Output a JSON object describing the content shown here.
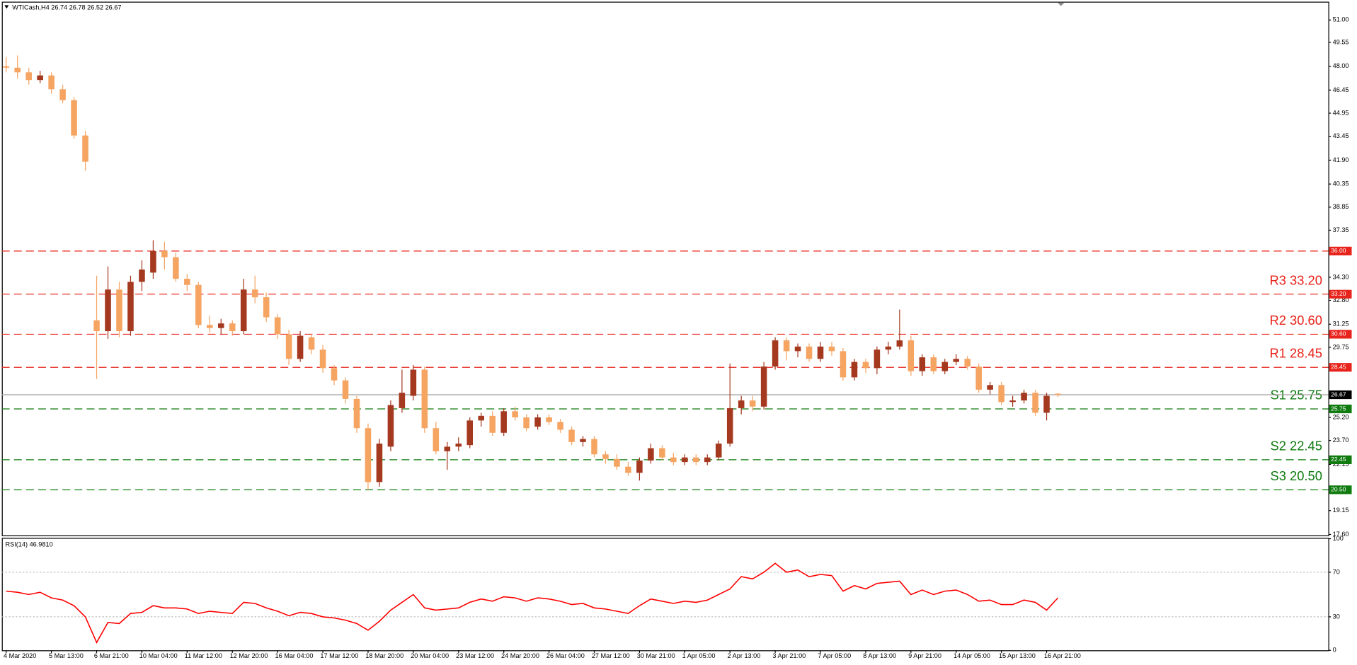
{
  "chart_data": [
    {
      "type": "candlestick",
      "title": "WTICash,H4  26.74 26.78 26.52 26.67",
      "up_color": "#a5391f",
      "down_color": "#f5a462",
      "categories": [
        "4 Mar 2020",
        null,
        null,
        null,
        "5 Mar 13:00",
        null,
        null,
        null,
        "6 Mar 21:00",
        null,
        null,
        null,
        "10 Mar 04:00",
        null,
        null,
        null,
        "11 Mar 12:00",
        null,
        null,
        null,
        "12 Mar 20:00",
        null,
        null,
        null,
        "16 Mar 04:00",
        null,
        null,
        null,
        "17 Mar 12:00",
        null,
        null,
        null,
        "18 Mar 20:00",
        null,
        null,
        null,
        "20 Mar 04:00",
        null,
        null,
        null,
        "23 Mar 12:00",
        null,
        null,
        null,
        "24 Mar 20:00",
        null,
        null,
        null,
        "26 Mar 04:00",
        null,
        null,
        null,
        "27 Mar 12:00",
        null,
        null,
        null,
        "30 Mar 21:00",
        null,
        null,
        null,
        "1 Apr 05:00",
        null,
        null,
        null,
        "2 Apr 13:00",
        null,
        null,
        null,
        "3 Apr 21:00",
        null,
        null,
        null,
        "7 Apr 05:00",
        null,
        null,
        null,
        "8 Apr 13:00",
        null,
        null,
        null,
        "9 Apr 21:00",
        null,
        null,
        null,
        "14 Apr 05:00",
        null,
        null,
        null,
        "15 Apr 13:00",
        null,
        null,
        null,
        "16 Apr 21:00",
        null
      ],
      "open": [
        48.0,
        47.9,
        47.6,
        47.1,
        47.4,
        46.5,
        45.8,
        43.5,
        31.5,
        30.8,
        33.5,
        30.8,
        34.0,
        34.6,
        36.0,
        35.6,
        34.2,
        33.8,
        31.2,
        31.0,
        31.3,
        30.8,
        33.5,
        33.0,
        31.7,
        30.6,
        29.0,
        30.4,
        29.6,
        28.4,
        27.6,
        26.4,
        24.5,
        21.0,
        23.3,
        25.8,
        26.6,
        28.3,
        24.5,
        23.0,
        23.3,
        23.4,
        25.0,
        25.3,
        24.2,
        25.6,
        25.2,
        24.6,
        25.2,
        24.9,
        24.4,
        23.6,
        23.8,
        22.8,
        22.5,
        22.0,
        21.6,
        22.4,
        23.2,
        22.6,
        22.3,
        22.6,
        22.3,
        22.6,
        23.5,
        25.8,
        26.3,
        25.9,
        28.5,
        30.2,
        29.5,
        29.8,
        29.0,
        29.8,
        29.5,
        27.8,
        28.8,
        28.4,
        29.6,
        29.8,
        30.2,
        28.2,
        29.1,
        28.2,
        28.8,
        29.0,
        28.5,
        27.0,
        27.3,
        26.2,
        26.3,
        26.8,
        25.5,
        26.74
      ],
      "high": [
        48.6,
        48.7,
        47.9,
        47.7,
        47.6,
        46.8,
        46.0,
        43.8,
        34.4,
        35.0,
        34.0,
        34.4,
        35.4,
        36.7,
        36.6,
        35.9,
        34.5,
        34.0,
        31.8,
        31.6,
        31.5,
        34.2,
        34.4,
        33.3,
        31.9,
        30.9,
        30.8,
        30.6,
        29.9,
        28.6,
        27.8,
        26.6,
        24.8,
        23.8,
        26.3,
        28.3,
        28.6,
        28.5,
        24.9,
        23.6,
        23.9,
        25.2,
        25.5,
        25.6,
        25.8,
        25.9,
        25.4,
        25.4,
        25.4,
        25.1,
        24.6,
        24.0,
        24.0,
        23.0,
        22.8,
        22.3,
        22.6,
        23.5,
        23.4,
        22.9,
        22.8,
        22.8,
        22.8,
        23.7,
        28.7,
        26.6,
        26.6,
        28.8,
        30.4,
        30.4,
        30.0,
        30.0,
        30.1,
        30.1,
        29.7,
        29.0,
        29.0,
        29.8,
        30.1,
        32.2,
        30.5,
        29.3,
        29.3,
        29.0,
        29.3,
        29.2,
        28.7,
        27.5,
        27.5,
        26.6,
        27.0,
        27.0,
        26.8,
        26.78
      ],
      "low": [
        47.6,
        47.2,
        46.8,
        46.9,
        46.2,
        45.6,
        43.3,
        41.2,
        27.7,
        30.3,
        30.4,
        30.5,
        33.4,
        34.2,
        34.8,
        34.0,
        33.4,
        31.0,
        30.7,
        30.6,
        30.5,
        30.6,
        32.6,
        31.4,
        30.3,
        28.6,
        28.8,
        29.3,
        28.1,
        27.3,
        26.1,
        24.2,
        20.5,
        20.7,
        23.0,
        25.5,
        26.3,
        24.2,
        22.8,
        21.8,
        23.0,
        23.2,
        24.6,
        24.0,
        24.0,
        25.0,
        24.3,
        24.4,
        24.7,
        24.2,
        23.4,
        23.3,
        22.6,
        22.2,
        21.8,
        21.4,
        21.1,
        22.2,
        22.4,
        22.1,
        22.1,
        22.1,
        22.1,
        22.4,
        23.3,
        25.4,
        25.6,
        25.7,
        28.3,
        28.9,
        29.1,
        28.8,
        28.8,
        29.2,
        27.6,
        27.6,
        28.1,
        28.0,
        29.3,
        29.6,
        27.9,
        27.9,
        28.0,
        28.0,
        28.6,
        28.3,
        26.8,
        26.7,
        26.0,
        25.9,
        26.1,
        25.3,
        25.0,
        26.52
      ],
      "close": [
        47.9,
        47.6,
        47.1,
        47.4,
        46.5,
        45.8,
        43.5,
        41.8,
        30.8,
        33.5,
        30.8,
        34.0,
        34.8,
        36.0,
        35.6,
        34.2,
        33.8,
        31.2,
        31.0,
        31.3,
        30.8,
        33.5,
        33.0,
        31.7,
        30.6,
        29.0,
        30.5,
        29.6,
        28.4,
        27.6,
        26.4,
        24.5,
        21.0,
        23.5,
        26.0,
        26.8,
        28.3,
        24.5,
        23.0,
        23.3,
        23.5,
        25.0,
        25.3,
        24.2,
        25.6,
        25.2,
        24.5,
        25.2,
        24.9,
        24.4,
        23.6,
        23.8,
        22.8,
        22.5,
        22.0,
        21.6,
        22.4,
        23.2,
        22.6,
        22.3,
        22.6,
        22.3,
        22.6,
        23.5,
        25.8,
        26.3,
        25.9,
        28.5,
        30.2,
        29.5,
        29.8,
        29.0,
        29.8,
        29.5,
        27.8,
        28.8,
        28.4,
        29.6,
        29.8,
        30.2,
        28.2,
        29.1,
        28.2,
        28.8,
        29.0,
        28.5,
        27.0,
        27.3,
        26.2,
        26.3,
        26.8,
        25.5,
        26.6,
        26.67
      ],
      "ylim": [
        17.49,
        52.13
      ],
      "yticks": [
        {
          "value": 17.6,
          "label": "17.60"
        },
        19.15,
        22.15,
        {
          "value": 23.7,
          "label": "23.70"
        },
        {
          "value": 25.2,
          "label": "25.20"
        },
        29.75,
        31.25,
        {
          "value": 32.8,
          "label": "32.80"
        },
        {
          "value": 34.3,
          "label": "34.30"
        },
        37.35,
        38.85,
        40.35,
        {
          "value": 41.9,
          "label": "41.90"
        },
        43.45,
        44.95,
        46.45,
        {
          "value": 48.0,
          "label": "48.00"
        },
        49.55,
        {
          "value": 51.0,
          "label": "51.00"
        }
      ],
      "levels": [
        {
          "value": 36.0,
          "tag": "36.00",
          "color": "#e8231b"
        },
        {
          "value": 33.2,
          "tag": "33.20",
          "label": "R3 33.20",
          "color": "#e8231b"
        },
        {
          "value": 30.6,
          "tag": "30.60",
          "label": "R2 30.60",
          "color": "#e8231b"
        },
        {
          "value": 28.45,
          "tag": "28.45",
          "label": "R1 28.45",
          "color": "#e8231b"
        },
        {
          "value": 25.75,
          "tag": "25.75",
          "label": "S1 25.75",
          "color": "#0f7b0f"
        },
        {
          "value": 22.45,
          "tag": "22.45",
          "label": "S2 22.45",
          "color": "#0f7b0f"
        },
        {
          "value": 20.5,
          "tag": "20.50",
          "label": "S3 20.50",
          "color": "#0f7b0f"
        }
      ],
      "last_price": {
        "value": 26.67,
        "tag": "26.67",
        "color": "#a0a0a0"
      }
    },
    {
      "type": "line",
      "title": "RSI(14) 46.9810",
      "color": "#ff0000",
      "values": [
        53,
        52,
        50,
        52,
        47,
        45,
        40,
        30,
        7,
        25,
        24,
        33,
        34,
        40,
        38,
        38,
        37,
        33,
        35,
        34,
        33,
        43,
        42,
        38,
        35,
        31,
        34,
        33,
        30,
        29,
        27,
        24,
        18,
        26,
        36,
        43,
        50,
        38,
        36,
        37,
        38,
        43,
        46,
        44,
        48,
        47,
        44,
        47,
        46,
        44,
        41,
        42,
        38,
        37,
        35,
        33,
        40,
        46,
        44,
        42,
        44,
        43,
        45,
        50,
        55,
        66,
        64,
        70,
        78,
        70,
        72,
        66,
        68,
        67,
        53,
        58,
        55,
        60,
        61,
        62,
        50,
        54,
        50,
        53,
        54,
        50,
        44,
        45,
        41,
        41,
        45,
        43,
        36,
        46.981
      ],
      "ylim": [
        0,
        100
      ],
      "yticks": [
        0,
        30,
        70,
        100
      ],
      "grid": true
    }
  ]
}
